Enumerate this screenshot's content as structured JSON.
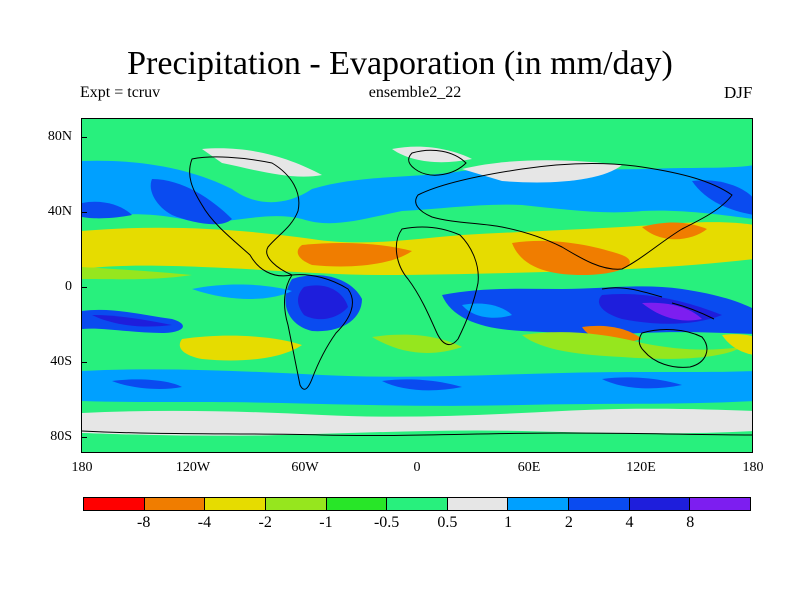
{
  "title": "Precipitation - Evaporation (in mm/day)",
  "experiment": "Expt = tcruv",
  "ensemble": "ensemble2_22",
  "season": "DJF",
  "y_labels": [
    "80N",
    "40N",
    "0",
    "40S",
    "80S"
  ],
  "x_labels": [
    "180",
    "120W",
    "60W",
    "0",
    "60E",
    "120E",
    "180"
  ],
  "colorbar": {
    "colors": [
      "#ff0000",
      "#f07d00",
      "#e6dc00",
      "#96e61e",
      "#28e628",
      "#28f07d",
      "#e6e6e6",
      "#00a0ff",
      "#0a4bf0",
      "#1e1edc",
      "#7d1ef0"
    ],
    "labels": [
      "-8",
      "-4",
      "-2",
      "-1",
      "-0.5",
      "0.5",
      "1",
      "2",
      "4",
      "8"
    ]
  },
  "map_colors": {
    "background": "#28f07d",
    "continent_outline": "#000000"
  }
}
